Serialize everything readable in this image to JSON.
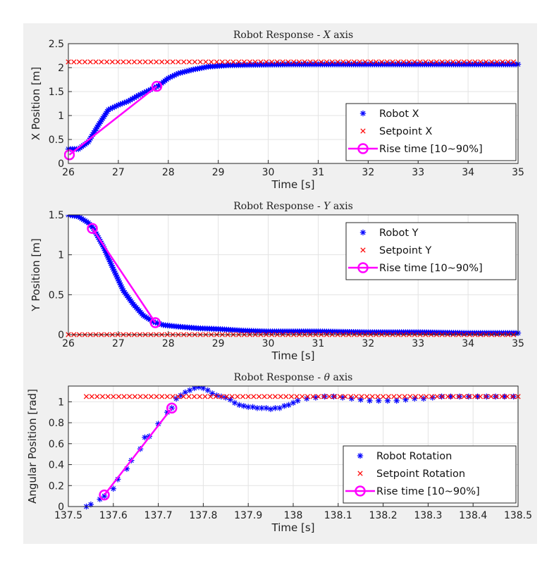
{
  "chart_data": [
    {
      "type": "scatter",
      "title": "Robot Response - X axis",
      "title_prefix": "Robot Response - ",
      "title_var": "X",
      "title_suffix": " axis",
      "xlabel": "Time [s]",
      "ylabel": "X Position [m]",
      "xlim": [
        26,
        35
      ],
      "ylim": [
        0,
        2.5
      ],
      "xticks": [
        "26",
        "27",
        "28",
        "29",
        "30",
        "31",
        "32",
        "33",
        "34",
        "35"
      ],
      "yticks": [
        "0",
        "0.5",
        "1",
        "1.5",
        "2",
        "2.5"
      ],
      "grid": true,
      "legend_position": "bottom-right",
      "series": [
        {
          "name": "Robot X",
          "marker": "asterisk",
          "color": "#0000ff",
          "points": [
            [
              26.0,
              0.3
            ],
            [
              26.2,
              0.3
            ],
            [
              26.4,
              0.45
            ],
            [
              26.6,
              0.8
            ],
            [
              26.8,
              1.12
            ],
            [
              27.0,
              1.22
            ],
            [
              27.2,
              1.3
            ],
            [
              27.4,
              1.42
            ],
            [
              27.6,
              1.52
            ],
            [
              27.8,
              1.62
            ],
            [
              28.0,
              1.78
            ],
            [
              28.2,
              1.88
            ],
            [
              28.5,
              1.96
            ],
            [
              28.8,
              2.02
            ],
            [
              29.2,
              2.05
            ],
            [
              29.7,
              2.06
            ],
            [
              30.5,
              2.07
            ],
            [
              31.5,
              2.07
            ],
            [
              32.5,
              2.07
            ],
            [
              33.5,
              2.07
            ],
            [
              34.5,
              2.07
            ],
            [
              35.0,
              2.07
            ]
          ]
        },
        {
          "name": "Setpoint X",
          "marker": "cross",
          "color": "#ff0000",
          "value": 2.12,
          "from": 26.0,
          "to": 35.0
        },
        {
          "name": "Rise time [10~90%]",
          "marker": "circle-line",
          "color": "#ff00ff",
          "points": [
            [
              26.02,
              0.18
            ],
            [
              27.77,
              1.61
            ]
          ]
        }
      ]
    },
    {
      "type": "scatter",
      "title": "Robot Response - Y axis",
      "title_prefix": "Robot Response - ",
      "title_var": "Y",
      "title_suffix": " axis",
      "xlabel": "Time [s]",
      "ylabel": "Y Position [m]",
      "xlim": [
        26,
        35
      ],
      "ylim": [
        0,
        1.5
      ],
      "xticks": [
        "26",
        "27",
        "28",
        "29",
        "30",
        "31",
        "32",
        "33",
        "34",
        "35"
      ],
      "yticks": [
        "0",
        "0.5",
        "1",
        "1.5"
      ],
      "grid": true,
      "legend_position": "top-right",
      "series": [
        {
          "name": "Robot Y",
          "marker": "asterisk",
          "color": "#0000ff",
          "points": [
            [
              26.0,
              1.5
            ],
            [
              26.2,
              1.48
            ],
            [
              26.4,
              1.4
            ],
            [
              26.5,
              1.33
            ],
            [
              26.7,
              1.1
            ],
            [
              26.9,
              0.82
            ],
            [
              27.1,
              0.55
            ],
            [
              27.3,
              0.38
            ],
            [
              27.5,
              0.24
            ],
            [
              27.7,
              0.16
            ],
            [
              27.9,
              0.12
            ],
            [
              28.2,
              0.1
            ],
            [
              28.6,
              0.08
            ],
            [
              29.0,
              0.07
            ],
            [
              29.5,
              0.05
            ],
            [
              30.0,
              0.04
            ],
            [
              31.0,
              0.04
            ],
            [
              32.0,
              0.03
            ],
            [
              33.0,
              0.03
            ],
            [
              34.0,
              0.02
            ],
            [
              35.0,
              0.02
            ]
          ]
        },
        {
          "name": "Setpoint Y",
          "marker": "cross",
          "color": "#ff0000",
          "value": 0.0,
          "from": 26.0,
          "to": 35.0
        },
        {
          "name": "Rise time [10~90%]",
          "marker": "circle-line",
          "color": "#ff00ff",
          "points": [
            [
              26.48,
              1.33
            ],
            [
              27.74,
              0.15
            ]
          ]
        }
      ]
    },
    {
      "type": "scatter",
      "title": "Robot Response - θ axis",
      "title_prefix": "Robot Response - ",
      "title_var": "θ",
      "title_suffix": " axis",
      "xlabel": "Time [s]",
      "ylabel": "Angular Position [rad]",
      "xlim": [
        137.5,
        138.5
      ],
      "ylim": [
        0,
        1.15
      ],
      "xticks": [
        "137.5",
        "137.6",
        "137.7",
        "137.8",
        "137.9",
        "138",
        "138.1",
        "138.2",
        "138.3",
        "138.4",
        "138.5"
      ],
      "yticks": [
        "0",
        "0.2",
        "0.4",
        "0.6",
        "0.8",
        "1"
      ],
      "grid": true,
      "legend_position": "bottom-right",
      "series": [
        {
          "name": "Robot Rotation",
          "marker": "asterisk",
          "color": "#0000ff",
          "points": [
            [
              137.54,
              0.0
            ],
            [
              137.55,
              0.02
            ],
            [
              137.57,
              0.07
            ],
            [
              137.58,
              0.1
            ],
            [
              137.6,
              0.17
            ],
            [
              137.61,
              0.26
            ],
            [
              137.63,
              0.36
            ],
            [
              137.64,
              0.44
            ],
            [
              137.66,
              0.55
            ],
            [
              137.67,
              0.66
            ],
            [
              137.68,
              0.67
            ],
            [
              137.7,
              0.79
            ],
            [
              137.72,
              0.9
            ],
            [
              137.73,
              0.94
            ],
            [
              137.74,
              1.03
            ],
            [
              137.75,
              1.06
            ],
            [
              137.76,
              1.09
            ],
            [
              137.77,
              1.11
            ],
            [
              137.78,
              1.13
            ],
            [
              137.79,
              1.14
            ],
            [
              137.8,
              1.13
            ],
            [
              137.81,
              1.11
            ],
            [
              137.82,
              1.08
            ],
            [
              137.83,
              1.06
            ],
            [
              137.84,
              1.05
            ],
            [
              137.85,
              1.04
            ],
            [
              137.86,
              1.02
            ],
            [
              137.87,
              0.99
            ],
            [
              137.88,
              0.97
            ],
            [
              137.89,
              0.96
            ],
            [
              137.9,
              0.95
            ],
            [
              137.91,
              0.95
            ],
            [
              137.92,
              0.94
            ],
            [
              137.93,
              0.94
            ],
            [
              137.94,
              0.94
            ],
            [
              137.95,
              0.93
            ],
            [
              137.96,
              0.94
            ],
            [
              137.97,
              0.94
            ],
            [
              137.98,
              0.96
            ],
            [
              137.99,
              0.97
            ],
            [
              138.0,
              0.99
            ],
            [
              138.01,
              1.01
            ],
            [
              138.03,
              1.03
            ],
            [
              138.05,
              1.04
            ],
            [
              138.07,
              1.05
            ],
            [
              138.09,
              1.05
            ],
            [
              138.11,
              1.04
            ],
            [
              138.13,
              1.03
            ],
            [
              138.15,
              1.02
            ],
            [
              138.17,
              1.01
            ],
            [
              138.19,
              1.01
            ],
            [
              138.21,
              1.01
            ],
            [
              138.23,
              1.01
            ],
            [
              138.25,
              1.02
            ],
            [
              138.27,
              1.03
            ],
            [
              138.29,
              1.03
            ],
            [
              138.31,
              1.04
            ],
            [
              138.33,
              1.05
            ],
            [
              138.35,
              1.05
            ],
            [
              138.37,
              1.05
            ],
            [
              138.39,
              1.05
            ],
            [
              138.41,
              1.05
            ],
            [
              138.43,
              1.05
            ],
            [
              138.45,
              1.05
            ],
            [
              138.47,
              1.05
            ],
            [
              138.49,
              1.05
            ]
          ]
        },
        {
          "name": "Setpoint Rotation",
          "marker": "cross",
          "color": "#ff0000",
          "value": 1.05,
          "from": 137.54,
          "to": 138.5
        },
        {
          "name": "Rise time [10~90%]",
          "marker": "circle-line",
          "color": "#ff00ff",
          "points": [
            [
              137.58,
              0.11
            ],
            [
              137.73,
              0.94
            ]
          ]
        }
      ]
    }
  ]
}
